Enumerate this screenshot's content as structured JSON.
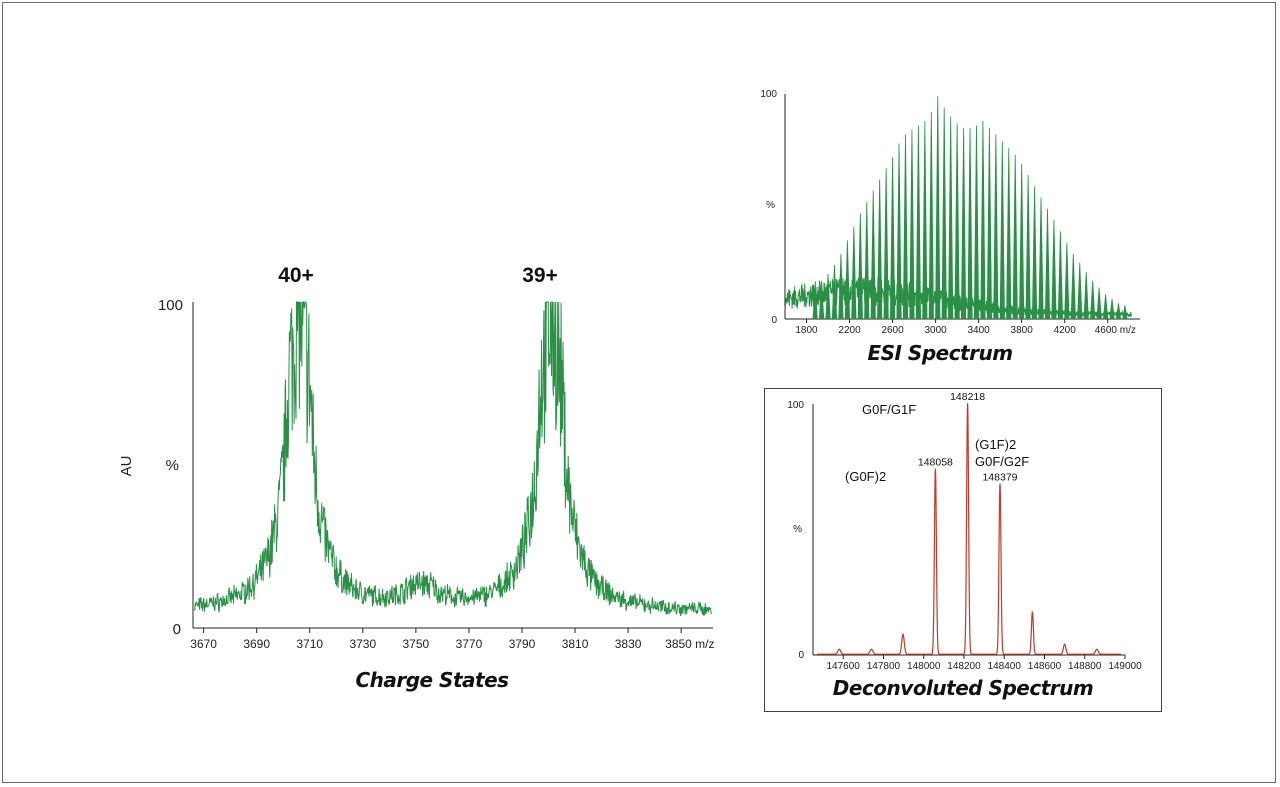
{
  "chart_data": [
    {
      "id": "charge",
      "type": "line",
      "caption": "Charge States",
      "ylabel": "AU",
      "ylabel_unit": "%",
      "color": "#2b8f47",
      "xlim": [
        3666,
        3862
      ],
      "ylim": [
        0,
        100
      ],
      "x_ticks": [
        3670,
        3690,
        3710,
        3730,
        3750,
        3770,
        3790,
        3810,
        3830,
        3850
      ],
      "x_tick_labels": [
        "3670",
        "3690",
        "3710",
        "3730",
        "3750",
        "3770",
        "3790",
        "3810",
        "3830",
        "3850 m/z"
      ],
      "y_tick_labels": [
        "0",
        "%",
        "100"
      ],
      "annotations": [
        {
          "x": 3706,
          "text": "40+"
        },
        {
          "x": 3801,
          "text": "39+"
        }
      ],
      "peaks": [
        {
          "x": 3706,
          "y": 100,
          "w": 7
        },
        {
          "x": 3801,
          "y": 98,
          "w": 7
        },
        {
          "x": 3752,
          "y": 7,
          "w": 10
        }
      ],
      "baseline": 4
    },
    {
      "id": "esi",
      "type": "bar",
      "caption": "ESI Spectrum",
      "ylabel_unit": "%",
      "color": "#2b8f47",
      "xlim": [
        1600,
        4900
      ],
      "ylim": [
        0,
        100
      ],
      "x_ticks": [
        1800,
        2200,
        2600,
        3000,
        3400,
        3800,
        4200,
        4600
      ],
      "x_tick_labels": [
        "1800",
        "2200",
        "2600",
        "3000",
        "3400",
        "3800",
        "4200",
        "4600 m/z"
      ],
      "y_tick_labels": [
        "0",
        "%",
        "100"
      ],
      "peak_mz": [
        1880,
        1940,
        2000,
        2060,
        2120,
        2180,
        2240,
        2300,
        2360,
        2420,
        2480,
        2540,
        2600,
        2660,
        2720,
        2780,
        2840,
        2900,
        2960,
        3020,
        3080,
        3140,
        3200,
        3260,
        3320,
        3380,
        3440,
        3500,
        3560,
        3620,
        3680,
        3740,
        3800,
        3860,
        3920,
        3980,
        4040,
        4100,
        4160,
        4220,
        4280,
        4340,
        4400,
        4460,
        4520,
        4580,
        4640,
        4700,
        4760
      ],
      "peak_intensity": [
        14,
        17,
        20,
        24,
        29,
        35,
        41,
        47,
        52,
        57,
        62,
        67,
        72,
        78,
        82,
        84,
        86,
        88,
        92,
        99,
        94,
        90,
        87,
        85,
        85,
        86,
        88,
        85,
        82,
        79,
        76,
        73,
        69,
        64,
        59,
        54,
        49,
        44,
        39,
        34,
        29,
        25,
        21,
        17,
        14,
        11,
        9,
        7,
        6
      ]
    },
    {
      "id": "deconv",
      "type": "line",
      "caption": "Deconvoluted Spectrum",
      "ylabel_unit": "%",
      "color": "#c0392b",
      "xlim": [
        147450,
        149000
      ],
      "ylim": [
        0,
        100
      ],
      "x_ticks": [
        147600,
        147800,
        148000,
        148200,
        148400,
        148600,
        148800,
        149000
      ],
      "x_tick_labels": [
        "147600",
        "147800",
        "148000",
        "148200",
        "148400",
        "148600",
        "148800",
        "149000"
      ],
      "y_tick_labels": [
        "0",
        "%",
        "100"
      ],
      "peaks": [
        {
          "x": 148058,
          "y": 74,
          "w": 7,
          "label": "148058"
        },
        {
          "x": 148218,
          "y": 100,
          "w": 7,
          "label": "148218"
        },
        {
          "x": 148379,
          "y": 68,
          "w": 7,
          "label": "148379"
        },
        {
          "x": 148540,
          "y": 17,
          "w": 7
        },
        {
          "x": 147897,
          "y": 8,
          "w": 9
        },
        {
          "x": 148700,
          "y": 4,
          "w": 9
        },
        {
          "x": 147740,
          "y": 2,
          "w": 10
        },
        {
          "x": 148860,
          "y": 2,
          "w": 10
        },
        {
          "x": 147580,
          "y": 2,
          "w": 10
        }
      ],
      "glycoform_labels": [
        {
          "lines": [
            "G0F/G1F"
          ],
          "anchor": 148218
        },
        {
          "lines": [
            "(G1F)2",
            "G0F/G2F"
          ],
          "anchor": 148379
        },
        {
          "lines": [
            "(G0F)2"
          ],
          "anchor": 148058
        }
      ]
    }
  ]
}
